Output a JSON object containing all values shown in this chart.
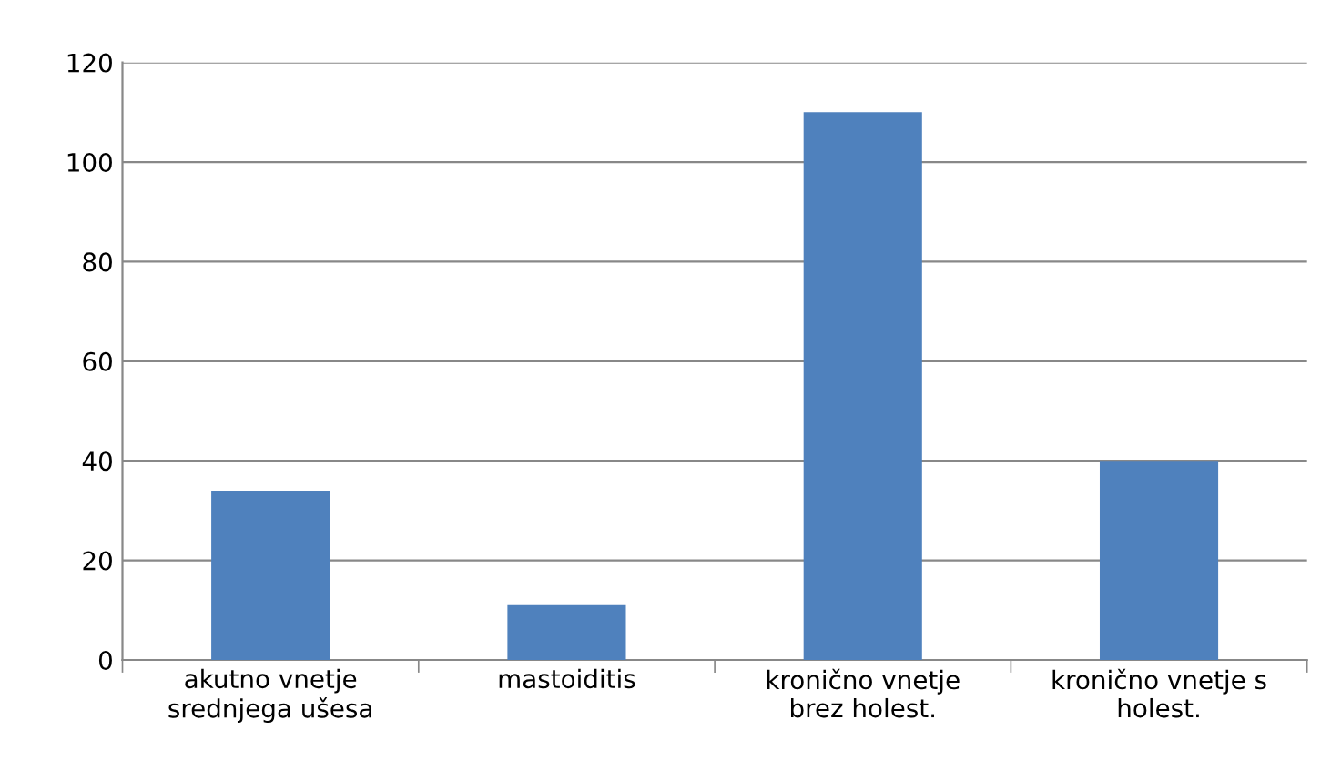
{
  "chart_data": {
    "type": "bar",
    "categories": [
      "akutno vnetje srednjega ušesa",
      "mastoiditis",
      "kronično vnetje brez holest.",
      "kronično vnetje s holest."
    ],
    "values": [
      34,
      11,
      110,
      40
    ],
    "color": "#4f81bd",
    "ylim": [
      0,
      120
    ],
    "yticks": [
      0,
      20,
      40,
      60,
      80,
      100,
      120
    ],
    "grid": "y",
    "legend": false
  }
}
